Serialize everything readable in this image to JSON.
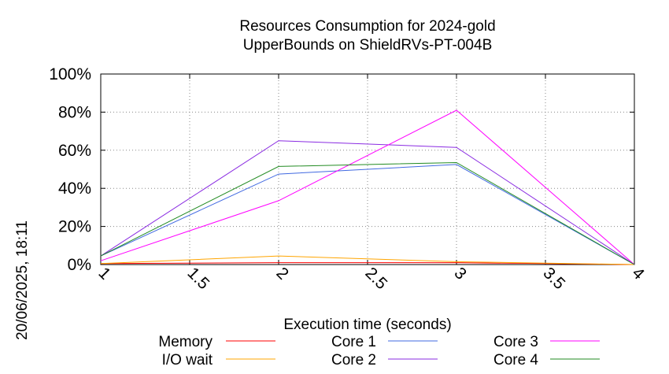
{
  "chart_data": {
    "type": "line",
    "title": [
      "Resources Consumption for 2024-gold",
      "UpperBounds on ShieldRVs-PT-004B"
    ],
    "xlabel": "Execution time (seconds)",
    "ylabel": "",
    "side_label": "20/06/2025, 18:11",
    "xlim": [
      1,
      4
    ],
    "ylim": [
      0,
      100
    ],
    "x_ticks": [
      "1",
      "1.5",
      "2",
      "2.5",
      "3",
      "3.5",
      "4"
    ],
    "y_ticks": [
      "0%",
      "20%",
      "40%",
      "60%",
      "80%",
      "100%"
    ],
    "grid": true,
    "legend_position": "bottom",
    "series": [
      {
        "name": "Memory",
        "color": "#ff0000",
        "x": [
          1,
          2,
          3,
          4
        ],
        "y": [
          0.5,
          1,
          1,
          0
        ]
      },
      {
        "name": "I/O wait",
        "color": "#ffa500",
        "x": [
          1,
          2,
          3,
          4
        ],
        "y": [
          0.5,
          4.5,
          1.5,
          0
        ]
      },
      {
        "name": "Core 1",
        "color": "#4169e1",
        "x": [
          1,
          2,
          3,
          4
        ],
        "y": [
          4.5,
          47.5,
          52.5,
          0
        ]
      },
      {
        "name": "Core 2",
        "color": "#8a2be2",
        "x": [
          1,
          2,
          3,
          4
        ],
        "y": [
          4.5,
          65,
          61.5,
          0
        ]
      },
      {
        "name": "Core 3",
        "color": "#ff00ff",
        "x": [
          1,
          2,
          3,
          4
        ],
        "y": [
          2,
          33.5,
          81,
          0
        ]
      },
      {
        "name": "Core 4",
        "color": "#228b22",
        "x": [
          1,
          2,
          3,
          4
        ],
        "y": [
          4.5,
          51.5,
          53.5,
          0
        ]
      }
    ]
  }
}
